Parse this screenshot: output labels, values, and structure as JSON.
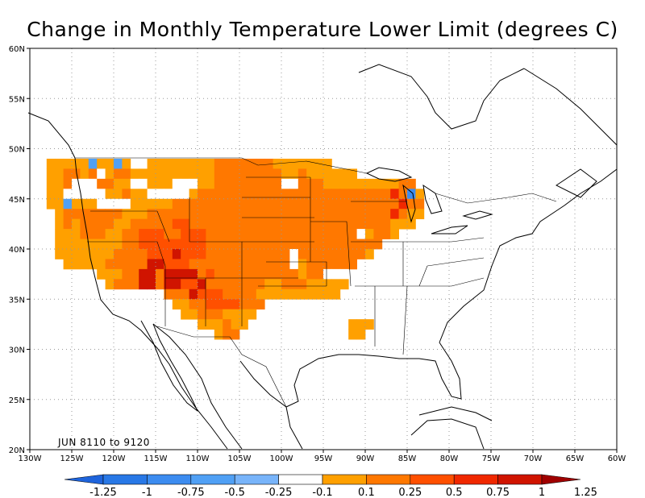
{
  "title": "Change in Monthly Temperature Lower Limit (degrees C)",
  "period_label": "JUN 8110 to 9120",
  "map": {
    "lon_min": -130,
    "lon_max": -60,
    "lat_min": 20,
    "lat_max": 60,
    "lon_ticks": [
      {
        "v": -130,
        "label": "130W"
      },
      {
        "v": -125,
        "label": "125W"
      },
      {
        "v": -120,
        "label": "120W"
      },
      {
        "v": -115,
        "label": "115W"
      },
      {
        "v": -110,
        "label": "110W"
      },
      {
        "v": -105,
        "label": "105W"
      },
      {
        "v": -100,
        "label": "100W"
      },
      {
        "v": -95,
        "label": "95W"
      },
      {
        "v": -90,
        "label": "90W"
      },
      {
        "v": -85,
        "label": "85W"
      },
      {
        "v": -80,
        "label": "80W"
      },
      {
        "v": -75,
        "label": "75W"
      },
      {
        "v": -70,
        "label": "70W"
      },
      {
        "v": -65,
        "label": "65W"
      },
      {
        "v": -60,
        "label": "60W"
      }
    ],
    "lat_ticks": [
      {
        "v": 20,
        "label": "20N"
      },
      {
        "v": 25,
        "label": "25N"
      },
      {
        "v": 30,
        "label": "30N"
      },
      {
        "v": 35,
        "label": "35N"
      },
      {
        "v": 40,
        "label": "40N"
      },
      {
        "v": 45,
        "label": "45N"
      },
      {
        "v": 50,
        "label": "50N"
      },
      {
        "v": 55,
        "label": "55N"
      },
      {
        "v": 60,
        "label": "60N"
      }
    ]
  },
  "colorbar": {
    "colors": [
      "#1e64dc",
      "#2878e6",
      "#3c8cf0",
      "#50a0f5",
      "#78b4fa",
      "#ffffff",
      "#ffa000",
      "#ff7800",
      "#ff5000",
      "#f02800",
      "#d01400",
      "#a00000"
    ],
    "labels": [
      "-1.25",
      "-1",
      "-0.75",
      "-0.5",
      "-0.25",
      "-0.1",
      "0.1",
      "0.25",
      "0.5",
      "0.75",
      "1",
      "1.25"
    ]
  },
  "legend_ref": {
    "w": "#ffffff",
    "o": "#ffa000",
    "d": "#ff7800",
    "r": "#ff5000",
    "R": "#f02800",
    "k": "#d01400",
    "b": "#3c8cf0",
    "c": "#50a0f5"
  },
  "grid": {
    "lon0": -128,
    "lat_top": 49,
    "rows": [
      "ooooocooco..oooooooodddddddooooooo...........",
      "ooddodwoddooooooooooddddddddoodoooooo.........",
      "oodwwwddoowwooowwwooddddddddwwdddooooooooodd.",
      "oowwwwwoodoowwwwwodddddddddddddddddddddddRdbo",
      "oocooowwwwooooodddddddddddddddddddddddddddRdd",
      ".odddddddooodddddddddddddddddddddddddddddRdoo",
      ".ododdddoodddddrrddddddddddddddddddddddddooo.",
      ".ooodddooddrrrddrrrddddddddddddddddddwoddo...",
      ".ooooooooddrrrrrrrrddddddddddddddddddddd.....",
      ".oooooooddddrrrkrrrddddddddddwddddddddo......",
      "..ooooodddddkkrrrddddddddddddwodddddd........",
      "......oooddkkdkkkkdrddddddddddoddwww.........",
      ".......odddkkdkkrrkdddddddoodddooooo.........",
      "..............dddkrrrddddoooooooooo...........",
      "...............ooddrrrrddd....................",
      "................oodddoooo......................",
      "..................ooodoo............ooo........",
      "....................odd.............oo........."
    ]
  }
}
